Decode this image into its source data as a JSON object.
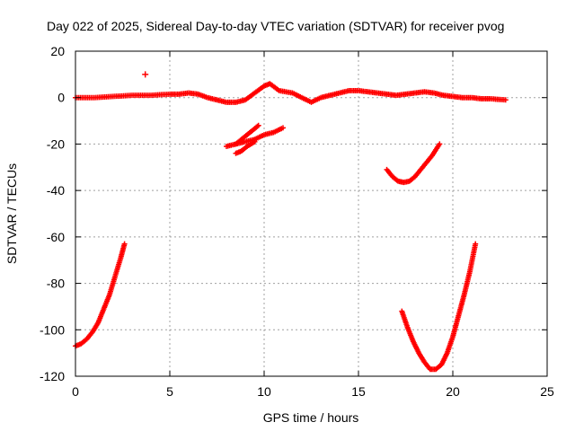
{
  "chart_data": {
    "type": "scatter",
    "title": "Day 022 of 2025, Sidereal Day-to-day VTEC variation (SDTVAR) for receiver pvog",
    "xlabel": "GPS time / hours",
    "ylabel": "SDTVAR / TECUs",
    "xlim": [
      0,
      25
    ],
    "ylim": [
      -120,
      20
    ],
    "xticks": [
      0,
      5,
      10,
      15,
      20,
      25
    ],
    "yticks": [
      20,
      0,
      -20,
      -40,
      -60,
      -80,
      -100,
      -120
    ],
    "grid": true,
    "marker": "+",
    "color": "#ff0000",
    "series": [
      {
        "name": "near-zero band",
        "x": [
          0,
          1,
          2,
          3,
          4,
          5,
          5.5,
          6,
          6.5,
          7,
          7.5,
          8,
          8.5,
          9,
          9.5,
          10,
          10.3,
          10.8,
          11.5,
          12,
          12.5,
          13,
          13.5,
          14,
          14.5,
          15,
          15.5,
          16,
          16.5,
          17,
          17.5,
          18,
          18.5,
          19,
          19.5,
          20,
          20.5,
          21,
          21.5,
          22,
          22.8
        ],
        "y": [
          0,
          0,
          0.5,
          1,
          1,
          1.5,
          1.5,
          2,
          1.5,
          0,
          -1,
          -2,
          -2,
          -1,
          2,
          5,
          6,
          3,
          2,
          0,
          -2,
          0,
          1,
          2,
          3,
          3,
          2.5,
          2,
          1.5,
          1,
          1.5,
          2,
          2.5,
          2,
          1,
          0.5,
          0,
          0,
          -0.5,
          -0.5,
          -1
        ]
      },
      {
        "name": "outlier",
        "x": [
          3.7
        ],
        "y": [
          10
        ]
      },
      {
        "name": "arc 8-11h",
        "x": [
          8,
          8.5,
          9,
          9.5,
          10,
          10.5,
          11
        ],
        "y": [
          -21,
          -20,
          -19,
          -18,
          -16,
          -15,
          -13
        ]
      },
      {
        "name": "arc 8.5-9.7h",
        "x": [
          8.5,
          8.8,
          9.1,
          9.4,
          9.7
        ],
        "y": [
          -20,
          -18,
          -16,
          -14,
          -12
        ]
      },
      {
        "name": "arc 8.5-9.5h lower",
        "x": [
          8.5,
          8.8,
          9.1,
          9.5
        ],
        "y": [
          -24,
          -23,
          -21,
          -19
        ]
      },
      {
        "name": "arc 16.5-19.3h",
        "x": [
          16.5,
          16.8,
          17.1,
          17.4,
          17.7,
          18,
          18.3,
          18.6,
          18.9,
          19.3
        ],
        "y": [
          -31,
          -34,
          -36,
          -36.5,
          -36,
          -34,
          -31,
          -28,
          -25,
          -20
        ]
      },
      {
        "name": "arc 0-2.6h",
        "x": [
          0,
          0.3,
          0.6,
          0.9,
          1.2,
          1.5,
          1.8,
          2.1,
          2.4,
          2.6
        ],
        "y": [
          -107,
          -106,
          -104,
          -101,
          -97,
          -91,
          -85,
          -77,
          -69,
          -63
        ]
      },
      {
        "name": "arc 17.3-21.2h",
        "x": [
          17.3,
          17.6,
          17.9,
          18.2,
          18.5,
          18.8,
          19.1,
          19.4,
          19.7,
          20,
          20.3,
          20.6,
          20.9,
          21.2
        ],
        "y": [
          -92,
          -99,
          -105,
          -110,
          -114,
          -117,
          -117,
          -115,
          -110,
          -103,
          -94,
          -85,
          -75,
          -63
        ]
      }
    ]
  }
}
